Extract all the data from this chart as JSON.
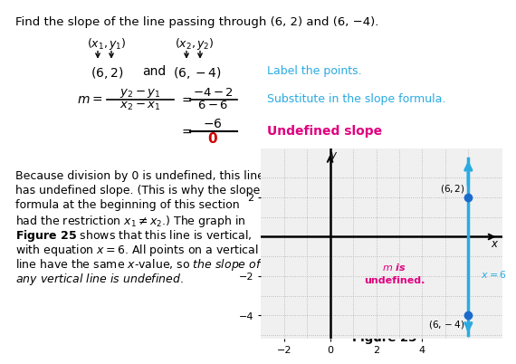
{
  "title_text": "Find the slope of the line passing through (6, 2) and (6, −4).",
  "line_color": "#29abe2",
  "dot_color": "#1a6bcc",
  "annotation_color_m": "#e0007f",
  "annotation_color_eq": "#29abe2",
  "cyan_color": "#29abe2",
  "red_color": "#cc0000",
  "magenta_color": "#e0007f",
  "bg_color": "#ffffff",
  "grid_color": "#cccccc",
  "text_color": "#000000",
  "graph_xlim": [
    -3,
    7.5
  ],
  "graph_ylim": [
    -5.2,
    4.5
  ],
  "xticks": [
    -2,
    0,
    2,
    4
  ],
  "yticks": [
    -4,
    -2,
    2
  ],
  "figure_label": "Figure 25"
}
